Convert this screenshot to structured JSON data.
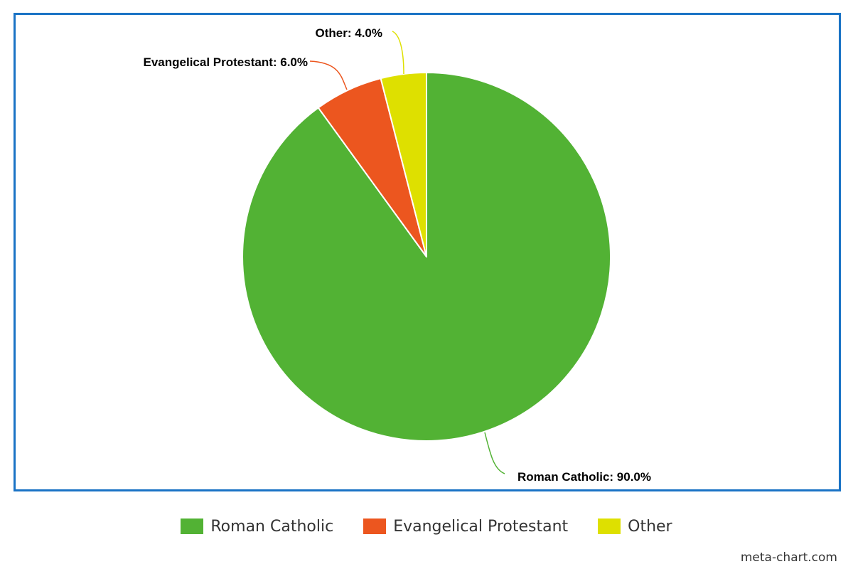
{
  "chart_data": {
    "type": "pie",
    "categories": [
      "Roman Catholic",
      "Evangelical Protestant",
      "Other"
    ],
    "values": [
      90.0,
      6.0,
      4.0
    ],
    "data_labels": [
      "Roman Catholic: 90.0%",
      "Evangelical Protestant: 6.0%",
      "Other: 4.0%"
    ],
    "colors": [
      "#52b234",
      "#ec561f",
      "#dee000"
    ],
    "title": "",
    "legend_position": "bottom-center"
  },
  "legend": {
    "items": [
      {
        "label": "Roman Catholic",
        "color": "#52b234"
      },
      {
        "label": "Evangelical Protestant",
        "color": "#ec561f"
      },
      {
        "label": "Other",
        "color": "#dee000"
      }
    ]
  },
  "watermark": "meta-chart.com",
  "colors": {
    "frame_border": "#1a73c5"
  }
}
